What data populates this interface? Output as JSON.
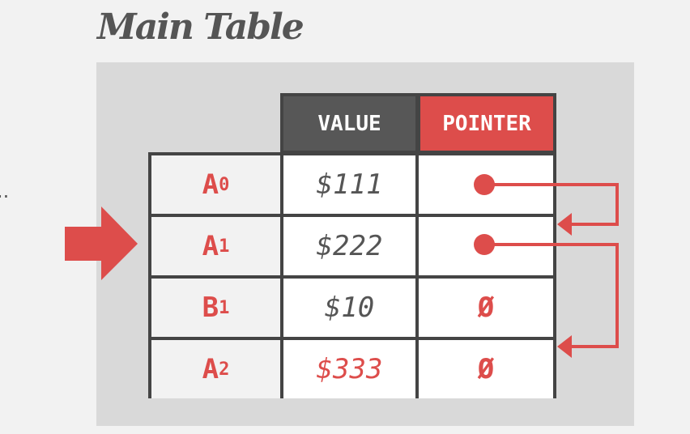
{
  "title": "Main Table",
  "ellipsis": "..",
  "columns": {
    "value": "VALUE",
    "pointer": "POINTER"
  },
  "rows": [
    {
      "key": "A",
      "sub": "0",
      "value": "$111",
      "pointer": "",
      "has_pointer": true
    },
    {
      "key": "A",
      "sub": "1",
      "value": "$222",
      "pointer": "",
      "has_pointer": true
    },
    {
      "key": "B",
      "sub": "1",
      "value": "$10",
      "pointer": "Ø",
      "has_pointer": false
    },
    {
      "key": "A",
      "sub": "2",
      "value": "$333",
      "pointer": "Ø",
      "has_pointer": false,
      "highlight": true
    }
  ],
  "current_row_indicator": "A1",
  "links": [
    {
      "from": "A0",
      "to": "A1"
    },
    {
      "from": "A1",
      "to": "A2"
    }
  ],
  "colors": {
    "accent": "#dd4d4b",
    "dark": "#575757",
    "panel": "#d9d9d9",
    "background": "#f2f2f2"
  }
}
